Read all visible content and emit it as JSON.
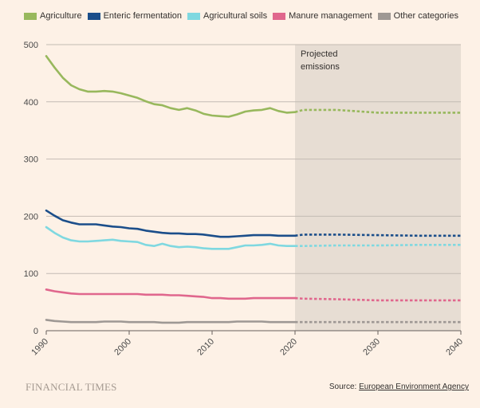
{
  "chart_data": {
    "type": "line",
    "title": "",
    "xlabel": "",
    "ylabel": "",
    "xlim": [
      1990,
      2040
    ],
    "ylim": [
      0,
      500
    ],
    "y_ticks": [
      0,
      100,
      200,
      300,
      400,
      500
    ],
    "x_ticks": [
      1990,
      2000,
      2010,
      2020,
      2030,
      2040
    ],
    "grid": true,
    "legend_position": "top",
    "projection_start": 2020,
    "projection_end": 2040,
    "annotation": "Projected emissions",
    "annotation_lines": [
      "Projected",
      "emissions"
    ],
    "series": [
      {
        "name": "Agriculture",
        "color": "#98b85d",
        "historical": {
          "x": [
            1990,
            1991,
            1992,
            1993,
            1994,
            1995,
            1996,
            1997,
            1998,
            1999,
            2000,
            2001,
            2002,
            2003,
            2004,
            2005,
            2006,
            2007,
            2008,
            2009,
            2010,
            2011,
            2012,
            2013,
            2014,
            2015,
            2016,
            2017,
            2018,
            2019,
            2020
          ],
          "y": [
            480,
            460,
            442,
            429,
            422,
            418,
            418,
            419,
            418,
            415,
            411,
            407,
            401,
            396,
            394,
            389,
            386,
            389,
            385,
            379,
            376,
            375,
            374,
            378,
            383,
            385,
            386,
            389,
            384,
            381,
            382
          ]
        },
        "projected": {
          "x": [
            2020,
            2021,
            2025,
            2030,
            2035,
            2040
          ],
          "y": [
            382,
            386,
            386,
            381,
            381,
            381
          ]
        }
      },
      {
        "name": "Enteric fermentation",
        "color": "#1b4e8a",
        "historical": {
          "x": [
            1990,
            1991,
            1992,
            1993,
            1994,
            1995,
            1996,
            1997,
            1998,
            1999,
            2000,
            2001,
            2002,
            2003,
            2004,
            2005,
            2006,
            2007,
            2008,
            2009,
            2010,
            2011,
            2012,
            2013,
            2014,
            2015,
            2016,
            2017,
            2018,
            2019,
            2020
          ],
          "y": [
            210,
            201,
            193,
            189,
            186,
            186,
            186,
            184,
            182,
            181,
            179,
            178,
            175,
            173,
            171,
            170,
            170,
            169,
            169,
            168,
            166,
            164,
            164,
            165,
            166,
            167,
            167,
            167,
            166,
            166,
            166
          ]
        },
        "projected": {
          "x": [
            2020,
            2021,
            2025,
            2030,
            2035,
            2040
          ],
          "y": [
            166,
            168,
            168,
            167,
            166,
            166
          ]
        }
      },
      {
        "name": "Agricultural soils",
        "color": "#7fd8e0",
        "historical": {
          "x": [
            1990,
            1991,
            1992,
            1993,
            1994,
            1995,
            1996,
            1997,
            1998,
            1999,
            2000,
            2001,
            2002,
            2003,
            2004,
            2005,
            2006,
            2007,
            2008,
            2009,
            2010,
            2011,
            2012,
            2013,
            2014,
            2015,
            2016,
            2017,
            2018,
            2019,
            2020
          ],
          "y": [
            181,
            171,
            163,
            158,
            156,
            156,
            157,
            158,
            159,
            157,
            156,
            155,
            150,
            148,
            152,
            148,
            146,
            147,
            146,
            144,
            143,
            143,
            143,
            146,
            149,
            149,
            150,
            152,
            149,
            148,
            148
          ]
        },
        "projected": {
          "x": [
            2020,
            2021,
            2025,
            2030,
            2035,
            2040
          ],
          "y": [
            148,
            148,
            149,
            149,
            150,
            150
          ]
        }
      },
      {
        "name": "Manure management",
        "color": "#e0678d",
        "historical": {
          "x": [
            1990,
            1991,
            1992,
            1993,
            1994,
            1995,
            1996,
            1997,
            1998,
            1999,
            2000,
            2001,
            2002,
            2003,
            2004,
            2005,
            2006,
            2007,
            2008,
            2009,
            2010,
            2011,
            2012,
            2013,
            2014,
            2015,
            2016,
            2017,
            2018,
            2019,
            2020
          ],
          "y": [
            72,
            69,
            67,
            65,
            64,
            64,
            64,
            64,
            64,
            64,
            64,
            64,
            63,
            63,
            63,
            62,
            62,
            61,
            60,
            59,
            57,
            57,
            56,
            56,
            56,
            57,
            57,
            57,
            57,
            57,
            57
          ]
        },
        "projected": {
          "x": [
            2020,
            2021,
            2025,
            2030,
            2035,
            2040
          ],
          "y": [
            57,
            56,
            55,
            53,
            53,
            53
          ]
        }
      },
      {
        "name": "Other categories",
        "color": "#9e9894",
        "historical": {
          "x": [
            1990,
            1991,
            1992,
            1993,
            1994,
            1995,
            1996,
            1997,
            1998,
            1999,
            2000,
            2001,
            2002,
            2003,
            2004,
            2005,
            2006,
            2007,
            2008,
            2009,
            2010,
            2011,
            2012,
            2013,
            2014,
            2015,
            2016,
            2017,
            2018,
            2019,
            2020
          ],
          "y": [
            19,
            17,
            16,
            15,
            15,
            15,
            15,
            16,
            16,
            16,
            15,
            15,
            15,
            15,
            14,
            14,
            14,
            15,
            15,
            15,
            15,
            15,
            15,
            16,
            16,
            16,
            16,
            15,
            15,
            15,
            15
          ]
        },
        "projected": {
          "x": [
            2020,
            2021,
            2025,
            2030,
            2035,
            2040
          ],
          "y": [
            15,
            15,
            15,
            15,
            15,
            15
          ]
        }
      }
    ]
  },
  "footer": {
    "logo": "FINANCIAL TIMES",
    "source_label": "Source:",
    "source_link": "European Environment Agency"
  }
}
